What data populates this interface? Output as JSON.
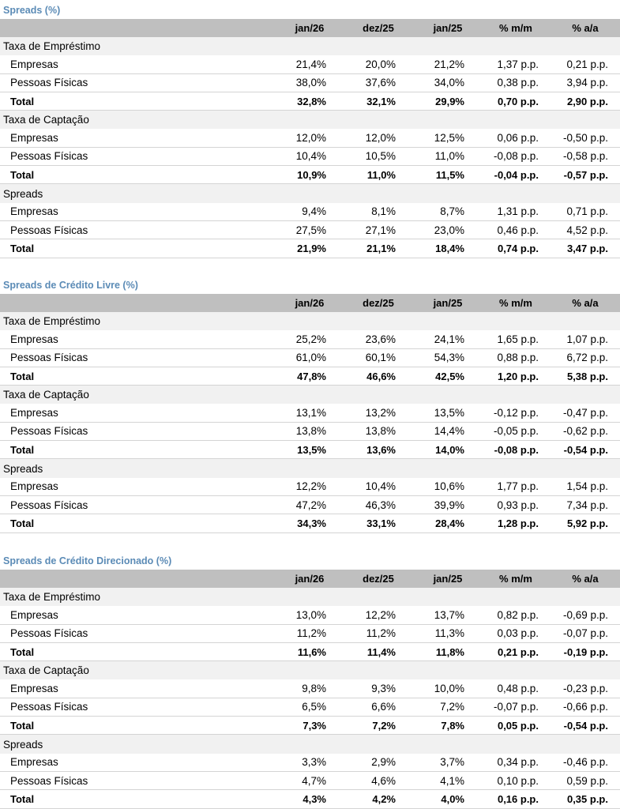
{
  "headers": [
    "jan/26",
    "dez/25",
    "jan/25",
    "% m/m",
    "% a/a"
  ],
  "tables": [
    {
      "title": "Spreads (%)",
      "groups": [
        {
          "name": "Taxa de Empréstimo",
          "rows": [
            {
              "label": "Empresas",
              "values": [
                "21,4%",
                "20,0%",
                "21,2%",
                "1,37 p.p.",
                "0,21 p.p."
              ]
            },
            {
              "label": "Pessoas Físicas",
              "values": [
                "38,0%",
                "37,6%",
                "34,0%",
                "0,38 p.p.",
                "3,94 p.p."
              ]
            },
            {
              "label": "Total",
              "values": [
                "32,8%",
                "32,1%",
                "29,9%",
                "0,70 p.p.",
                "2,90 p.p."
              ],
              "total": true
            }
          ]
        },
        {
          "name": "Taxa de Captação",
          "rows": [
            {
              "label": "Empresas",
              "values": [
                "12,0%",
                "12,0%",
                "12,5%",
                "0,06 p.p.",
                "-0,50 p.p."
              ]
            },
            {
              "label": "Pessoas Físicas",
              "values": [
                "10,4%",
                "10,5%",
                "11,0%",
                "-0,08 p.p.",
                "-0,58 p.p."
              ]
            },
            {
              "label": "Total",
              "values": [
                "10,9%",
                "11,0%",
                "11,5%",
                "-0,04 p.p.",
                "-0,57 p.p."
              ],
              "total": true
            }
          ]
        },
        {
          "name": "Spreads",
          "rows": [
            {
              "label": "Empresas",
              "values": [
                "9,4%",
                "8,1%",
                "8,7%",
                "1,31 p.p.",
                "0,71 p.p."
              ]
            },
            {
              "label": "Pessoas Físicas",
              "values": [
                "27,5%",
                "27,1%",
                "23,0%",
                "0,46 p.p.",
                "4,52 p.p."
              ]
            },
            {
              "label": "Total",
              "values": [
                "21,9%",
                "21,1%",
                "18,4%",
                "0,74 p.p.",
                "3,47 p.p."
              ],
              "total": true
            }
          ]
        }
      ]
    },
    {
      "title": "Spreads de Crédito Livre (%)",
      "groups": [
        {
          "name": "Taxa de Empréstimo",
          "rows": [
            {
              "label": "Empresas",
              "values": [
                "25,2%",
                "23,6%",
                "24,1%",
                "1,65 p.p.",
                "1,07 p.p."
              ]
            },
            {
              "label": "Pessoas Físicas",
              "values": [
                "61,0%",
                "60,1%",
                "54,3%",
                "0,88 p.p.",
                "6,72 p.p."
              ]
            },
            {
              "label": "Total",
              "values": [
                "47,8%",
                "46,6%",
                "42,5%",
                "1,20 p.p.",
                "5,38 p.p."
              ],
              "total": true
            }
          ]
        },
        {
          "name": "Taxa de Captação",
          "rows": [
            {
              "label": "Empresas",
              "values": [
                "13,1%",
                "13,2%",
                "13,5%",
                "-0,12 p.p.",
                "-0,47 p.p."
              ]
            },
            {
              "label": "Pessoas Físicas",
              "values": [
                "13,8%",
                "13,8%",
                "14,4%",
                "-0,05 p.p.",
                "-0,62 p.p."
              ]
            },
            {
              "label": "Total",
              "values": [
                "13,5%",
                "13,6%",
                "14,0%",
                "-0,08 p.p.",
                "-0,54 p.p."
              ],
              "total": true
            }
          ]
        },
        {
          "name": "Spreads",
          "rows": [
            {
              "label": "Empresas",
              "values": [
                "12,2%",
                "10,4%",
                "10,6%",
                "1,77 p.p.",
                "1,54 p.p."
              ]
            },
            {
              "label": "Pessoas Físicas",
              "values": [
                "47,2%",
                "46,3%",
                "39,9%",
                "0,93 p.p.",
                "7,34 p.p."
              ]
            },
            {
              "label": "Total",
              "values": [
                "34,3%",
                "33,1%",
                "28,4%",
                "1,28 p.p.",
                "5,92 p.p."
              ],
              "total": true
            }
          ]
        }
      ]
    },
    {
      "title": "Spreads de Crédito Direcionado (%)",
      "groups": [
        {
          "name": "Taxa de Empréstimo",
          "rows": [
            {
              "label": "Empresas",
              "values": [
                "13,0%",
                "12,2%",
                "13,7%",
                "0,82 p.p.",
                "-0,69 p.p."
              ]
            },
            {
              "label": "Pessoas Físicas",
              "values": [
                "11,2%",
                "11,2%",
                "11,3%",
                "0,03 p.p.",
                "-0,07 p.p."
              ]
            },
            {
              "label": "Total",
              "values": [
                "11,6%",
                "11,4%",
                "11,8%",
                "0,21 p.p.",
                "-0,19 p.p."
              ],
              "total": true
            }
          ]
        },
        {
          "name": "Taxa de Captação",
          "rows": [
            {
              "label": "Empresas",
              "values": [
                "9,8%",
                "9,3%",
                "10,0%",
                "0,48 p.p.",
                "-0,23 p.p."
              ]
            },
            {
              "label": "Pessoas Físicas",
              "values": [
                "6,5%",
                "6,6%",
                "7,2%",
                "-0,07 p.p.",
                "-0,66 p.p."
              ]
            },
            {
              "label": "Total",
              "values": [
                "7,3%",
                "7,2%",
                "7,8%",
                "0,05 p.p.",
                "-0,54 p.p."
              ],
              "total": true
            }
          ]
        },
        {
          "name": "Spreads",
          "rows": [
            {
              "label": "Empresas",
              "values": [
                "3,3%",
                "2,9%",
                "3,7%",
                "0,34 p.p.",
                "-0,46 p.p."
              ]
            },
            {
              "label": "Pessoas Físicas",
              "values": [
                "4,7%",
                "4,6%",
                "4,1%",
                "0,10 p.p.",
                "0,59 p.p."
              ]
            },
            {
              "label": "Total",
              "values": [
                "4,3%",
                "4,2%",
                "4,0%",
                "0,16 p.p.",
                "0,35 p.p."
              ],
              "total": true
            }
          ]
        }
      ]
    }
  ]
}
